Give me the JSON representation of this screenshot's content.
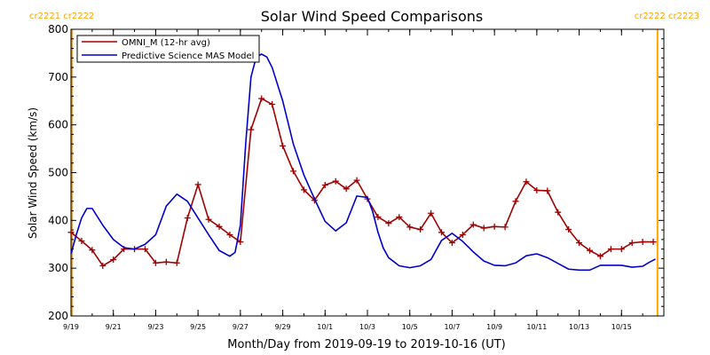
{
  "chart_data": {
    "type": "line",
    "title": "Solar Wind Speed Comparisons",
    "xlabel": "Month/Day from 2019-09-19 to 2019-10-16 (UT)",
    "ylabel": "Solar Wind Speed (km/s)",
    "xlim": [
      0,
      28
    ],
    "ylim": [
      200,
      800
    ],
    "y_ticks": [
      200,
      300,
      400,
      500,
      600,
      700,
      800
    ],
    "x_ticks": [
      {
        "pos": 0,
        "label": "9/19"
      },
      {
        "pos": 2,
        "label": "9/21"
      },
      {
        "pos": 4,
        "label": "9/23"
      },
      {
        "pos": 6,
        "label": "9/25"
      },
      {
        "pos": 8,
        "label": "9/27"
      },
      {
        "pos": 10,
        "label": "9/29"
      },
      {
        "pos": 12,
        "label": "10/1"
      },
      {
        "pos": 14,
        "label": "10/3"
      },
      {
        "pos": 16,
        "label": "10/5"
      },
      {
        "pos": 18,
        "label": "10/7"
      },
      {
        "pos": 20,
        "label": "10/9"
      },
      {
        "pos": 22,
        "label": "10/11"
      },
      {
        "pos": 24,
        "label": "10/13"
      },
      {
        "pos": 26,
        "label": "10/15"
      }
    ],
    "carrington_markers": [
      {
        "pos": 0.05,
        "left": "cr2221",
        "right": "cr2222",
        "color": "#ffa500",
        "side": "left"
      },
      {
        "pos": 27.7,
        "left": "cr2222",
        "right": "cr2223",
        "color": "#ffa500",
        "side": "right"
      }
    ],
    "legend": {
      "position": "top-left"
    },
    "series": [
      {
        "name": "OMNI_M (12-hr avg)",
        "color": "#a00000",
        "marker": "plus",
        "x": [
          0,
          0.5,
          1,
          1.5,
          2,
          2.5,
          3,
          3.5,
          4,
          4.5,
          5,
          5.5,
          6,
          6.5,
          7,
          7.5,
          8,
          8.5,
          9,
          9.5,
          10,
          10.5,
          11,
          11.5,
          12,
          12.5,
          13,
          13.5,
          14,
          14.5,
          15,
          15.5,
          16,
          16.5,
          17,
          17.5,
          18,
          18.5,
          19,
          19.5,
          20,
          20.5,
          21,
          21.5,
          22,
          22.5,
          23,
          23.5,
          24,
          24.5,
          25,
          25.5,
          26,
          26.5,
          27,
          27.5
        ],
        "y": [
          375,
          357,
          338,
          305,
          318,
          340,
          340,
          340,
          311,
          313,
          311,
          405,
          475,
          402,
          387,
          370,
          355,
          590,
          655,
          643,
          556,
          503,
          464,
          442,
          474,
          482,
          466,
          484,
          445,
          407,
          394,
          407,
          386,
          381,
          415,
          375,
          353,
          370,
          391,
          384,
          387,
          386,
          440,
          481,
          463,
          462,
          417,
          381,
          353,
          337,
          325,
          340,
          340,
          353,
          355,
          355
        ]
      },
      {
        "name": "Predictive Science MAS Model",
        "color": "#0000cc",
        "marker": "none",
        "x": [
          0,
          0.25,
          0.5,
          0.75,
          1,
          1.5,
          2,
          2.5,
          3,
          3.5,
          4,
          4.5,
          5,
          5.5,
          6,
          6.5,
          7,
          7.5,
          7.75,
          8,
          8.25,
          8.5,
          8.75,
          9,
          9.25,
          9.5,
          10,
          10.5,
          11,
          11.5,
          12,
          12.5,
          13,
          13.5,
          14,
          14.25,
          14.5,
          14.75,
          15,
          15.5,
          16,
          16.5,
          17,
          17.5,
          18,
          18.5,
          19,
          19.5,
          20,
          20.5,
          21,
          21.5,
          22,
          22.5,
          23,
          23.5,
          24,
          24.5,
          25,
          25.5,
          26,
          26.5,
          27,
          27.3,
          27.6
        ],
        "y": [
          330,
          370,
          405,
          425,
          425,
          390,
          360,
          343,
          340,
          350,
          370,
          430,
          455,
          440,
          405,
          370,
          337,
          325,
          333,
          390,
          560,
          700,
          742,
          748,
          742,
          720,
          650,
          560,
          495,
          445,
          398,
          378,
          395,
          451,
          448,
          418,
          375,
          342,
          322,
          305,
          301,
          305,
          318,
          358,
          373,
          356,
          334,
          315,
          306,
          305,
          311,
          326,
          330,
          322,
          310,
          298,
          296,
          296,
          306,
          306,
          306,
          302,
          304,
          312,
          319
        ]
      }
    ]
  }
}
